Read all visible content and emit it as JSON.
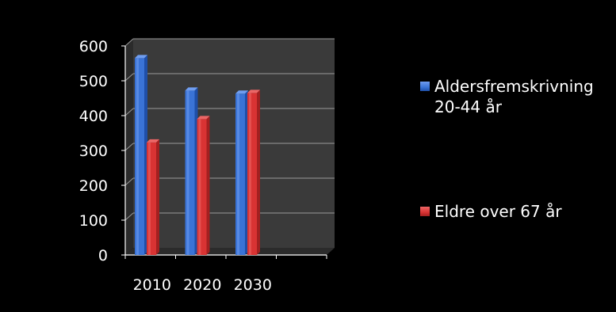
{
  "chart_data": {
    "type": "bar",
    "categories": [
      "2010",
      "2020",
      "2030"
    ],
    "series": [
      {
        "name": "Aldersfremskrivning\n20-44 år",
        "values": [
          565,
          472,
          463
        ]
      },
      {
        "name": "Eldre over 67 år",
        "values": [
          323,
          390,
          465
        ]
      }
    ],
    "ylim": [
      0,
      600
    ],
    "yticks": [
      0,
      100,
      200,
      300,
      400,
      500,
      600
    ],
    "grid": true,
    "legend": "right",
    "colors": {
      "series": [
        "#3a73d6",
        "#d93333"
      ],
      "series_dark": [
        "#1f4fa8",
        "#a32020"
      ],
      "series_top": [
        "#6f9df0",
        "#ec6666"
      ],
      "plot_bg": "#3a3a3a",
      "floor": "#2b2b2b",
      "gridline": "#9a9a9a",
      "axis": "#ffffff",
      "text": "#ffffff",
      "background": "#000000"
    }
  }
}
